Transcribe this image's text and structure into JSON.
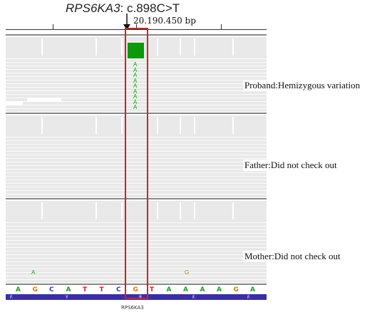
{
  "header": {
    "gene": "RPS6KA3",
    "variant": ": c.898C>T",
    "position": "20.190.450 bp"
  },
  "panels": [
    {
      "label": "Proband:Hemizygous variation"
    },
    {
      "label": "Father:Did not check out"
    },
    {
      "label": "Mother:Did not check out"
    }
  ],
  "reference_sequence": [
    "A",
    "G",
    "C",
    "A",
    "T",
    "T",
    "C",
    "G",
    "T",
    "A",
    "A",
    "A",
    "A",
    "G",
    "A"
  ],
  "gene_track": {
    "segments": [
      "F.",
      "Y",
      "R",
      "F.",
      "F."
    ],
    "name": "RPS6KA3"
  },
  "colors": {
    "A": "#1aa31a",
    "C": "#2a3cc8",
    "G": "#d27a0a",
    "T": "#d42020",
    "highlight_box": "#d42020",
    "variant_base": "#00aa00"
  }
}
